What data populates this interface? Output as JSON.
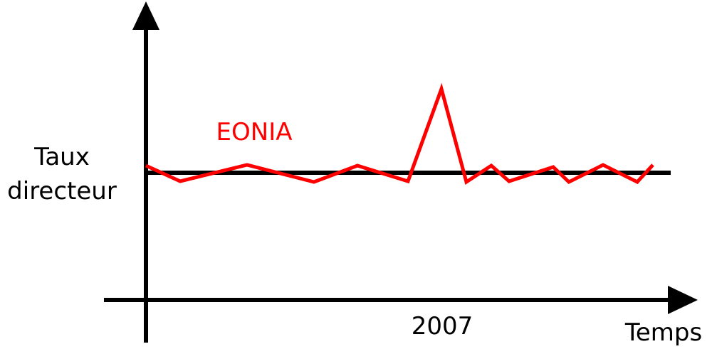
{
  "labels": {
    "y_axis_line1": "Taux",
    "y_axis_line2": "directeur",
    "x_axis": "Temps",
    "year": "2007",
    "series": "EONIA"
  },
  "colors": {
    "axes": "#000000",
    "policy_rate": "#000000",
    "eonia": "#ff0000"
  }
}
